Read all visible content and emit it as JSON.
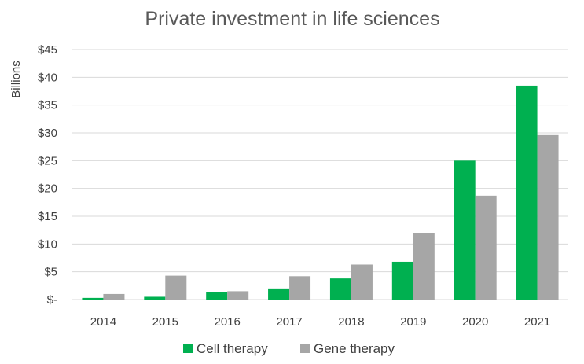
{
  "chart_data": {
    "type": "bar",
    "title": "Private investment in life sciences",
    "xlabel": "",
    "ylabel": "Billions",
    "categories": [
      "2014",
      "2015",
      "2016",
      "2017",
      "2018",
      "2019",
      "2020",
      "2021"
    ],
    "series": [
      {
        "name": "Cell therapy",
        "color": "#00b050",
        "values": [
          0.3,
          0.5,
          1.3,
          2.0,
          3.8,
          6.8,
          25.0,
          38.5
        ]
      },
      {
        "name": "Gene therapy",
        "color": "#a6a6a6",
        "values": [
          1.0,
          4.3,
          1.5,
          4.2,
          6.3,
          12.0,
          18.7,
          29.6
        ]
      }
    ],
    "ylim": [
      0,
      45
    ],
    "yticks": [
      0,
      5,
      10,
      15,
      20,
      25,
      30,
      35,
      40,
      45
    ],
    "ytick_labels": [
      "$-",
      "$5",
      "$10",
      "$15",
      "$20",
      "$25",
      "$30",
      "$35",
      "$40",
      "$45"
    ],
    "grid": true,
    "gridline_color": "#d9d9d9",
    "legend_position": "bottom"
  }
}
